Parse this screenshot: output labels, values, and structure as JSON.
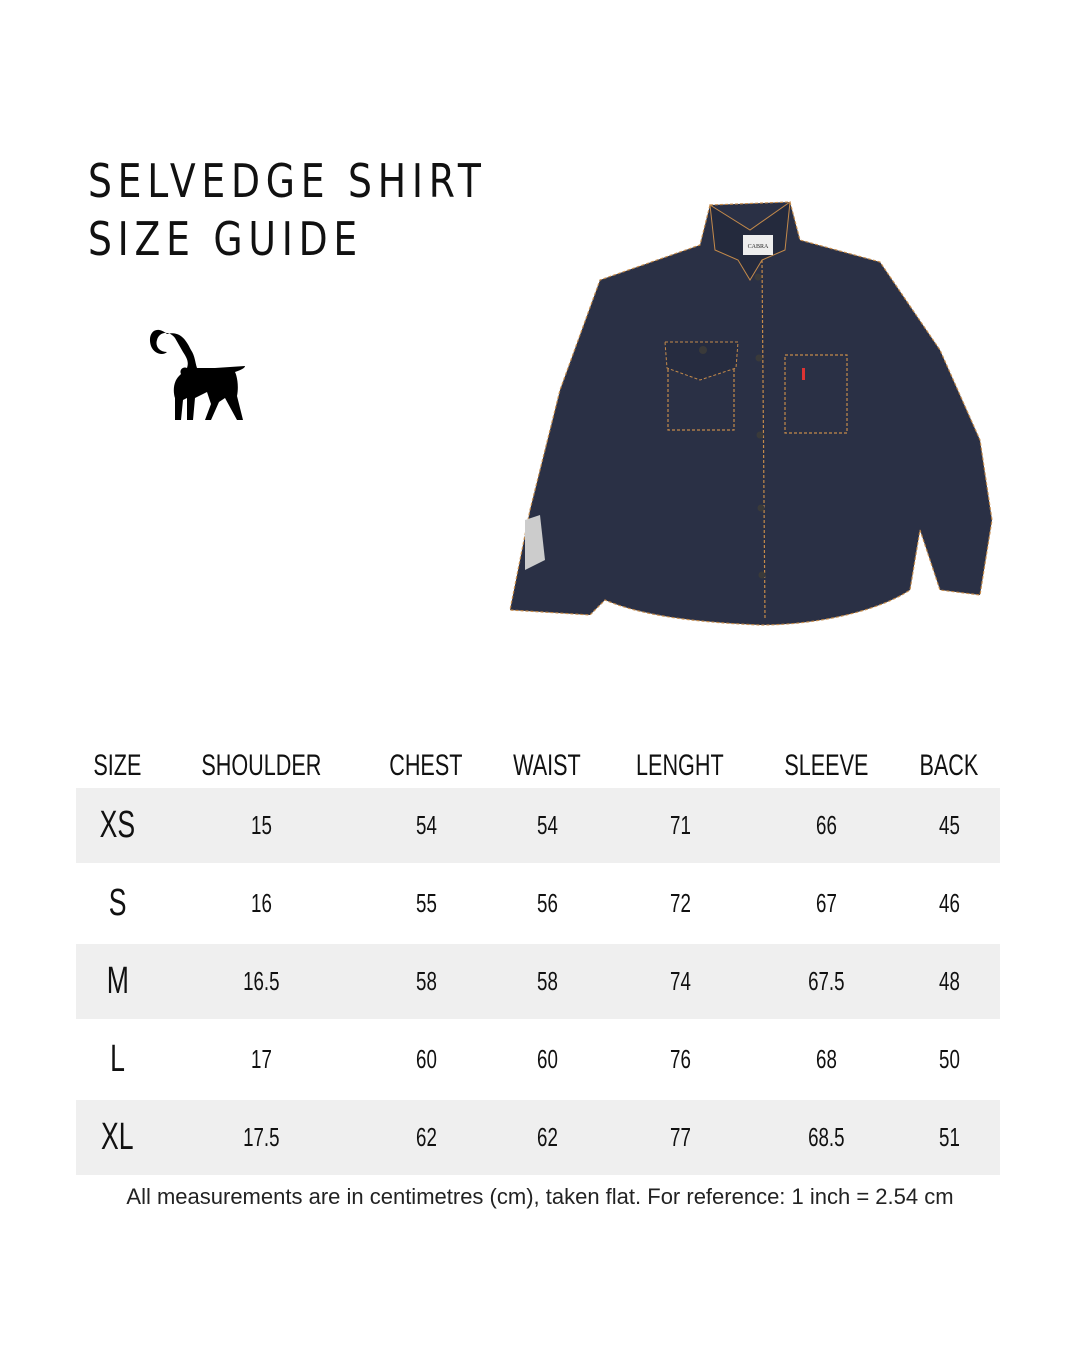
{
  "title": {
    "line1": "SELVEDGE SHIRT",
    "line2": "SIZE GUIDE"
  },
  "logo": {
    "icon": "ibex-goat-icon"
  },
  "product_image": {
    "label_text": "CABRA",
    "color": "#2a3045"
  },
  "table": {
    "headers": [
      "SIZE",
      "SHOULDER",
      "CHEST",
      "WAIST",
      "LENGHT",
      "SLEEVE",
      "BACK"
    ],
    "rows": [
      [
        "XS",
        "15",
        "54",
        "54",
        "71",
        "66",
        "45"
      ],
      [
        "S",
        "16",
        "55",
        "56",
        "72",
        "67",
        "46"
      ],
      [
        "M",
        "16.5",
        "58",
        "58",
        "74",
        "67.5",
        "48"
      ],
      [
        "L",
        "17",
        "60",
        "60",
        "76",
        "68",
        "50"
      ],
      [
        "XL",
        "17.5",
        "62",
        "62",
        "77",
        "68.5",
        "51"
      ]
    ],
    "shade_color": "#efefef"
  },
  "note": "All measurements are in centimetres (cm), taken flat. For reference: 1 inch = 2.54 cm"
}
